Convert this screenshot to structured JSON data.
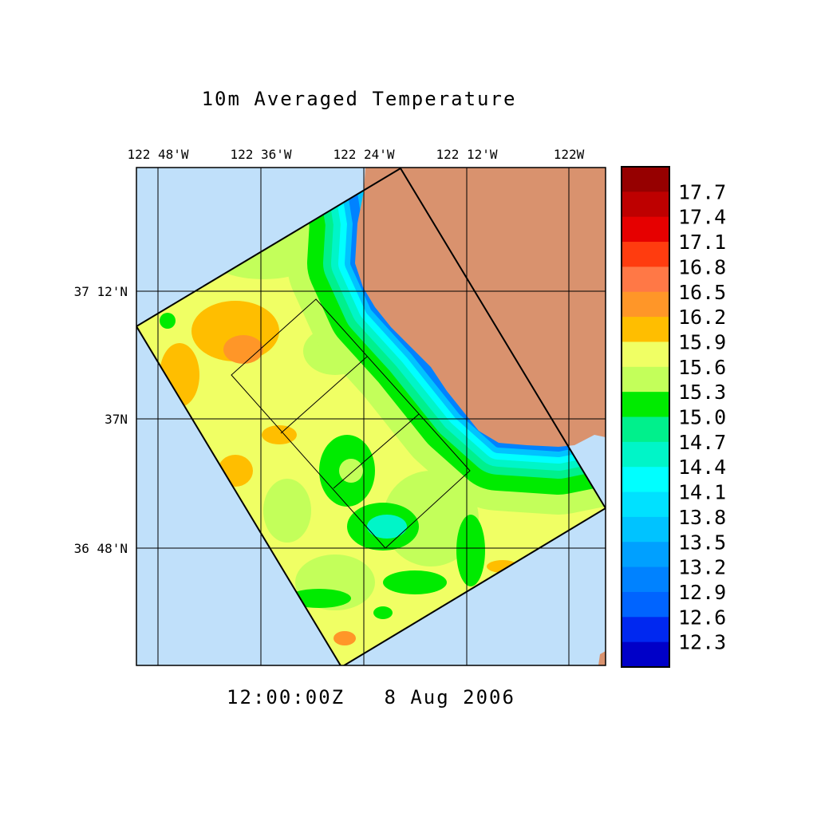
{
  "title": "10m Averaged Temperature",
  "timestamp": "12:00:00Z   8 Aug 2006",
  "lon_ticks": [
    "122 48'W",
    "122 36'W",
    "122 24'W",
    "122 12'W",
    "122W"
  ],
  "lat_ticks": [
    "37 12'N",
    "37N",
    "36 48'N"
  ],
  "colors": {
    "ocean_outside": "#c0e0fa",
    "land": "#d9926e",
    "base": "#f0ff64"
  },
  "colorbar": {
    "labels": [
      "17.7",
      "17.4",
      "17.1",
      "16.8",
      "16.5",
      "16.2",
      "15.9",
      "15.6",
      "15.3",
      "15.0",
      "14.7",
      "14.4",
      "14.1",
      "13.8",
      "13.5",
      "13.2",
      "12.9",
      "12.6",
      "12.3"
    ],
    "colors": [
      "#960000",
      "#be0000",
      "#e60000",
      "#ff3c0f",
      "#ff7846",
      "#ff9628",
      "#ffbe00",
      "#f0ff64",
      "#c3ff5a",
      "#00eb00",
      "#00f08c",
      "#00f5c8",
      "#00ffff",
      "#00e1ff",
      "#00c3ff",
      "#00a0ff",
      "#0082ff",
      "#0064ff",
      "#0028f0",
      "#0000c8"
    ]
  }
}
